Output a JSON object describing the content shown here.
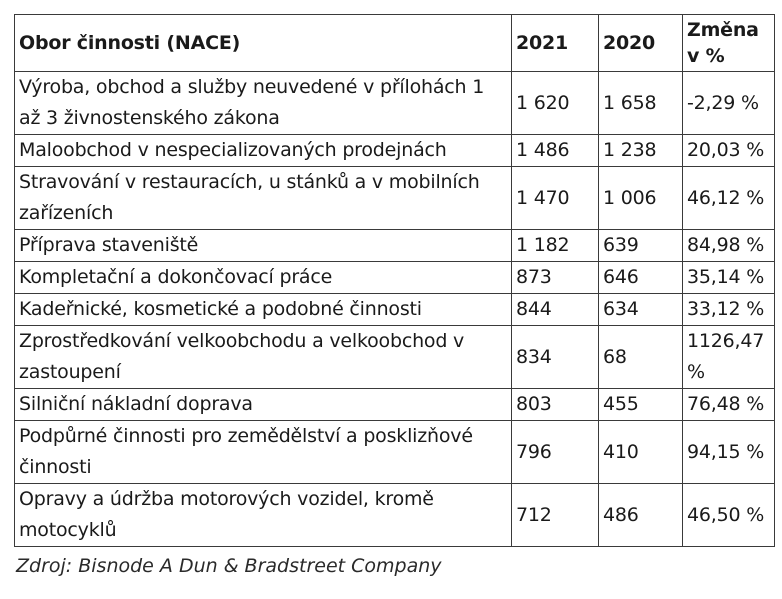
{
  "table": {
    "headers": {
      "activity": "Obor činnosti (NACE)",
      "y2021": "2021",
      "y2020": "2020",
      "change": "Změna v %"
    },
    "rows": [
      {
        "activity": "Výroba, obchod a služby neuvedené v přílohách 1 až 3 živnostenského zákona",
        "y2021": "1 620",
        "y2020": "1 658",
        "change": "-2,29 %"
      },
      {
        "activity": "Maloobchod v nespecializovaných prodejnách",
        "y2021": "1 486",
        "y2020": "1 238",
        "change": "20,03 %"
      },
      {
        "activity": "Stravování v restauracích, u stánků a v mobilních zařízeních",
        "y2021": "1 470",
        "y2020": "1 006",
        "change": "46,12 %"
      },
      {
        "activity": "Příprava staveniště",
        "y2021": "1 182",
        "y2020": "639",
        "change": "84,98 %"
      },
      {
        "activity": "Kompletační a dokončovací práce",
        "y2021": "873",
        "y2020": "646",
        "change": "35,14 %"
      },
      {
        "activity": "Kadeřnické, kosmetické a podobné činnosti",
        "y2021": "844",
        "y2020": "634",
        "change": "33,12 %"
      },
      {
        "activity": "Zprostředkování velkoobchodu a velkoobchod v zastoupení",
        "y2021": "834",
        "y2020": "68",
        "change": "1126,47 %"
      },
      {
        "activity": "Silniční nákladní doprava",
        "y2021": "803",
        "y2020": "455",
        "change": "76,48 %"
      },
      {
        "activity": "Podpůrné činnosti pro zemědělství a posklizňové činnosti",
        "y2021": "796",
        "y2020": "410",
        "change": "94,15 %"
      },
      {
        "activity": "Opravy a údržba motorových vozidel, kromě motocyklů",
        "y2021": "712",
        "y2020": "486",
        "change": "46,50 %"
      }
    ]
  },
  "source": "Zdroj: Bisnode A Dun & Bradstreet Company"
}
